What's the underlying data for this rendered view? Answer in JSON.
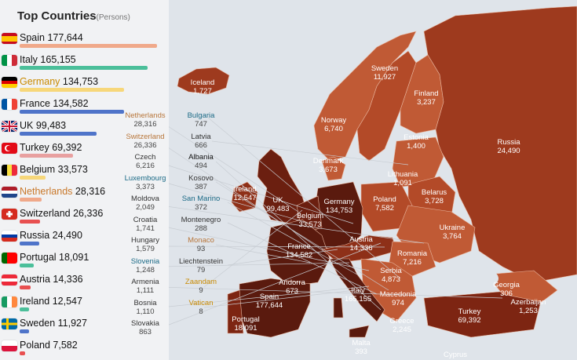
{
  "panel": {
    "title": "Top Countries",
    "unit": "(Persons)"
  },
  "ranking": [
    {
      "name": "Spain",
      "value": "177,644",
      "share": 1.0,
      "bar_color": "#f0a98a",
      "name_color": "#111",
      "flag": "spain"
    },
    {
      "name": "Italy",
      "value": "165,155",
      "share": 0.93,
      "bar_color": "#4bbf9a",
      "name_color": "#111",
      "flag": "italy"
    },
    {
      "name": "Germany",
      "value": "134,753",
      "share": 0.76,
      "bar_color": "#f7d77a",
      "name_color": "#c98a00",
      "flag": "germany"
    },
    {
      "name": "France",
      "value": "134,582",
      "share": 0.76,
      "bar_color": "#4f74c9",
      "name_color": "#111",
      "flag": "france"
    },
    {
      "name": "UK",
      "value": "99,483",
      "share": 0.56,
      "bar_color": "#4f74c9",
      "name_color": "#111",
      "flag": "uk"
    },
    {
      "name": "Turkey",
      "value": "69,392",
      "share": 0.39,
      "bar_color": "#e8a0a0",
      "name_color": "#111",
      "flag": "turkey"
    },
    {
      "name": "Belgium",
      "value": "33,573",
      "share": 0.19,
      "bar_color": "#f7d77a",
      "name_color": "#111",
      "flag": "belgium"
    },
    {
      "name": "Netherlands",
      "value": "28,316",
      "share": 0.16,
      "bar_color": "#f0a98a",
      "name_color": "#c9782a",
      "flag": "netherlands"
    },
    {
      "name": "Switzerland",
      "value": "26,336",
      "share": 0.15,
      "bar_color": "#e85050",
      "name_color": "#111",
      "flag": "switzerland"
    },
    {
      "name": "Russia",
      "value": "24,490",
      "share": 0.14,
      "bar_color": "#4f74c9",
      "name_color": "#111",
      "flag": "russia"
    },
    {
      "name": "Portugal",
      "value": "18,091",
      "share": 0.1,
      "bar_color": "#4bbf9a",
      "name_color": "#111",
      "flag": "portugal"
    },
    {
      "name": "Austria",
      "value": "14,336",
      "share": 0.08,
      "bar_color": "#e85050",
      "name_color": "#111",
      "flag": "austria"
    },
    {
      "name": "Ireland",
      "value": "12,547",
      "share": 0.07,
      "bar_color": "#4bbf9a",
      "name_color": "#111",
      "flag": "ireland"
    },
    {
      "name": "Sweden",
      "value": "11,927",
      "share": 0.07,
      "bar_color": "#4f74c9",
      "name_color": "#111",
      "flag": "sweden"
    },
    {
      "name": "Poland",
      "value": "7,582",
      "share": 0.04,
      "bar_color": "#e85050",
      "name_color": "#111",
      "flag": "poland"
    }
  ],
  "small_countries_left": [
    {
      "name": "Netherlands",
      "value": "28,316",
      "color": "#b8763a"
    },
    {
      "name": "Switzerland",
      "value": "26,336",
      "color": "#b8763a"
    },
    {
      "name": "Czech",
      "value": "6,216",
      "color": "#333"
    },
    {
      "name": "Luxembourg",
      "value": "3,373",
      "color": "#1b6a86"
    },
    {
      "name": "Moldova",
      "value": "2,049",
      "color": "#333"
    },
    {
      "name": "Croatia",
      "value": "1,741",
      "color": "#333"
    },
    {
      "name": "Hungary",
      "value": "1,579",
      "color": "#333"
    },
    {
      "name": "Slovenia",
      "value": "1,248",
      "color": "#1b6a86"
    },
    {
      "name": "Armenia",
      "value": "1,111",
      "color": "#333"
    },
    {
      "name": "Bosnia",
      "value": "1,110",
      "color": "#333"
    },
    {
      "name": "Slovakia",
      "value": "863",
      "color": "#333"
    }
  ],
  "small_countries_right": [
    {
      "name": "Bulgaria",
      "value": "747",
      "color": "#1b6a86"
    },
    {
      "name": "Latvia",
      "value": "666",
      "color": "#333"
    },
    {
      "name": "Albania",
      "value": "494",
      "color": "#111"
    },
    {
      "name": "Kosovo",
      "value": "387",
      "color": "#333"
    },
    {
      "name": "San Marino",
      "value": "372",
      "color": "#1b6a86"
    },
    {
      "name": "Montenegro",
      "value": "288",
      "color": "#333"
    },
    {
      "name": "Monaco",
      "value": "93",
      "color": "#b8763a"
    },
    {
      "name": "Liechtenstein",
      "value": "79",
      "color": "#333"
    },
    {
      "name": "Zaandam",
      "value": "9",
      "color": "#c98a00"
    },
    {
      "name": "Vatican",
      "value": "8",
      "color": "#c98a00"
    }
  ],
  "map_labels": [
    {
      "name": "Iceland",
      "value": "1,727"
    },
    {
      "name": "Sweden",
      "value": "11,927"
    },
    {
      "name": "Finland",
      "value": "3,237"
    },
    {
      "name": "Norway",
      "value": "6,740"
    },
    {
      "name": "Estonia",
      "value": "1,400"
    },
    {
      "name": "Russia",
      "value": "24,490"
    },
    {
      "name": "Denmark",
      "value": "3,673"
    },
    {
      "name": "Lithuania",
      "value": "1,091"
    },
    {
      "name": "Ireland",
      "value": "12,547"
    },
    {
      "name": "UK",
      "value": "99,483"
    },
    {
      "name": "Belarus",
      "value": "3,728"
    },
    {
      "name": "Poland",
      "value": "7,582"
    },
    {
      "name": "Germany",
      "value": "134,753"
    },
    {
      "name": "Belgium",
      "value": "33,573"
    },
    {
      "name": "Ukraine",
      "value": "3,764"
    },
    {
      "name": "Austria",
      "value": "14,336"
    },
    {
      "name": "France",
      "value": "134,582"
    },
    {
      "name": "Romania",
      "value": "7,216"
    },
    {
      "name": "Serbia",
      "value": "4,873"
    },
    {
      "name": "Andorra",
      "value": "673"
    },
    {
      "name": "Italy",
      "value": "165,155"
    },
    {
      "name": "Macedonia",
      "value": "974"
    },
    {
      "name": "Georgia",
      "value": "306"
    },
    {
      "name": "Spain",
      "value": "177,644"
    },
    {
      "name": "Turkey",
      "value": "69,392"
    },
    {
      "name": "Azerbaijan",
      "value": "1,253"
    },
    {
      "name": "Portugal",
      "value": "18,091"
    },
    {
      "name": "Greece",
      "value": "2,245"
    },
    {
      "name": "Malta",
      "value": "393"
    },
    {
      "name": "Cyprus",
      "value": ""
    }
  ],
  "colors": {
    "sea": "#dfe4ea",
    "panel": "#f1f2f4",
    "darkest": "#5a1a0e",
    "dark": "#7d2512",
    "mid": "#9e3a1e",
    "light": "#c05a35",
    "lighter": "#d7784f"
  }
}
